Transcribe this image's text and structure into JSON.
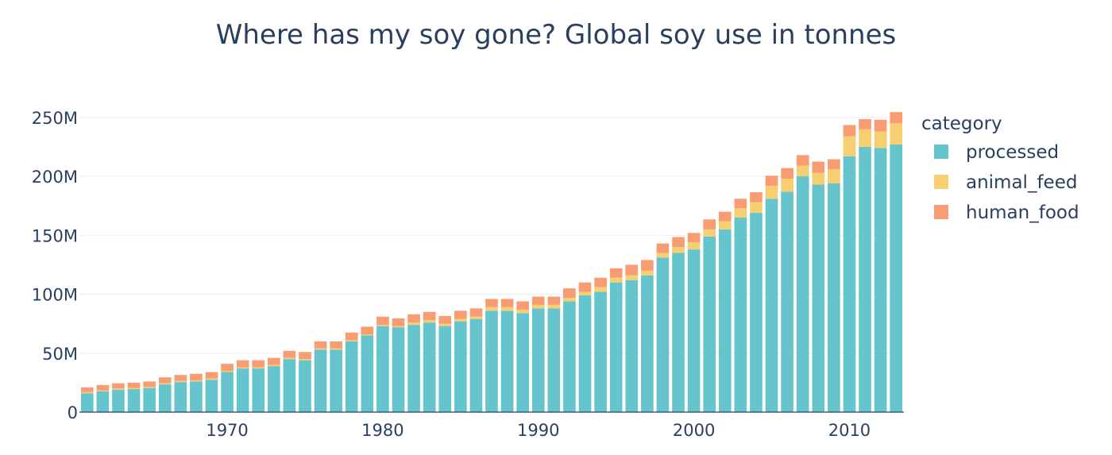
{
  "chart_data": {
    "type": "bar",
    "barmode": "stack",
    "title": "Where has my soy gone? Global soy use in tonnes",
    "xlabel": "",
    "ylabel": "",
    "ylim": [
      0,
      262000000
    ],
    "y_ticks": [
      0,
      50000000,
      100000000,
      150000000,
      200000000,
      250000000
    ],
    "y_tick_labels": [
      "0",
      "50M",
      "100M",
      "150M",
      "200M",
      "250M"
    ],
    "x_ticks": [
      1970,
      1980,
      1990,
      2000,
      2010
    ],
    "x_tick_labels": [
      "1970",
      "1980",
      "1990",
      "2000",
      "2010"
    ],
    "legend_title": "category",
    "legend_position": "right",
    "grid": true,
    "x": [
      1961,
      1962,
      1963,
      1964,
      1965,
      1966,
      1967,
      1968,
      1969,
      1970,
      1971,
      1972,
      1973,
      1974,
      1975,
      1976,
      1977,
      1978,
      1979,
      1980,
      1981,
      1982,
      1983,
      1984,
      1985,
      1986,
      1987,
      1988,
      1989,
      1990,
      1991,
      1992,
      1993,
      1994,
      1995,
      1996,
      1997,
      1998,
      1999,
      2000,
      2001,
      2002,
      2003,
      2004,
      2005,
      2006,
      2007,
      2008,
      2009,
      2010,
      2011,
      2012,
      2013
    ],
    "series": [
      {
        "name": "processed",
        "color": "#66c5cc",
        "values": [
          16000000,
          17500000,
          19000000,
          19500000,
          20500000,
          23500000,
          25500000,
          26000000,
          27500000,
          34000000,
          37000000,
          37000000,
          39000000,
          45000000,
          44000000,
          53000000,
          53000000,
          60000000,
          65000000,
          73000000,
          72000000,
          74000000,
          76000000,
          73000000,
          77000000,
          79000000,
          86000000,
          86000000,
          84000000,
          88000000,
          88000000,
          94000000,
          99000000,
          102000000,
          110000000,
          112000000,
          116000000,
          131000000,
          135000000,
          138000000,
          149000000,
          155000000,
          165000000,
          169000000,
          181000000,
          187000000,
          200000000,
          193000000,
          194000000,
          217000000,
          225000000,
          224000000,
          227000000
        ]
      },
      {
        "name": "animal_feed",
        "color": "#f6cf71",
        "values": [
          1000000,
          1000000,
          1000000,
          1000000,
          1000000,
          1000000,
          1000000,
          1000000,
          1000000,
          1000000,
          1000000,
          1000000,
          1000000,
          1000000,
          1000000,
          1000000,
          1000000,
          1000000,
          1000000,
          1000000,
          1000000,
          2000000,
          2000000,
          2000000,
          2000000,
          2000000,
          3000000,
          3000000,
          3000000,
          3000000,
          3000000,
          3000000,
          3000000,
          4000000,
          4000000,
          4000000,
          4000000,
          4000000,
          5000000,
          6000000,
          6000000,
          7000000,
          8000000,
          9000000,
          11000000,
          11000000,
          9000000,
          10000000,
          12000000,
          17000000,
          15000000,
          14000000,
          18000000
        ]
      },
      {
        "name": "human_food",
        "color": "#f89c74",
        "values": [
          4000000,
          4500000,
          4500000,
          4500000,
          4500000,
          5000000,
          5000000,
          5500000,
          5500000,
          6000000,
          6000000,
          6000000,
          6000000,
          6000000,
          6000000,
          6000000,
          6000000,
          6500000,
          6500000,
          7000000,
          6500000,
          7000000,
          7000000,
          6500000,
          7000000,
          7000000,
          7000000,
          7000000,
          7000000,
          7000000,
          7000000,
          8000000,
          8000000,
          8000000,
          8000000,
          9000000,
          9000000,
          8000000,
          8500000,
          8000000,
          8500000,
          8000000,
          8000000,
          8500000,
          8500000,
          9000000,
          9000000,
          9500000,
          8500000,
          9500000,
          8500000,
          10000000,
          9500000
        ]
      }
    ]
  }
}
